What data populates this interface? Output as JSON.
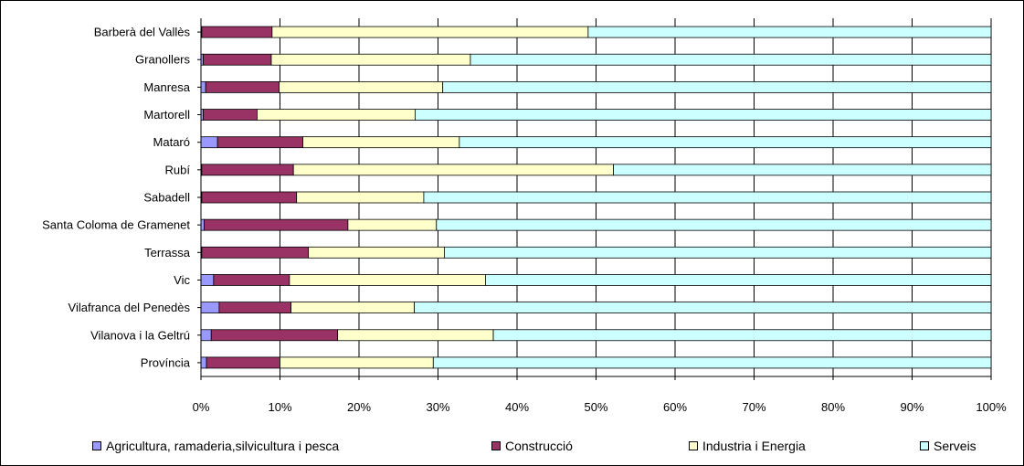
{
  "chart_data": {
    "type": "bar",
    "orientation": "horizontal",
    "stacking": "percent",
    "title": "",
    "xlabel": "",
    "ylabel": "",
    "xlim": [
      0,
      100
    ],
    "x_ticks": [
      "0%",
      "10%",
      "20%",
      "30%",
      "40%",
      "50%",
      "60%",
      "70%",
      "80%",
      "90%",
      "100%"
    ],
    "grid": "vertical",
    "legend_position": "bottom",
    "categories": [
      "Barberà del Vallès",
      "Granollers",
      "Manresa",
      "Martorell",
      "Mataró",
      "Rubí",
      "Sabadell",
      "Santa Coloma de Gramenet",
      "Terrassa",
      "Vic",
      "Vilafranca del Penedès",
      "Vilanova i la Geltrú",
      "Província"
    ],
    "series": [
      {
        "name": "Agricultura, ramaderia,silvicultura i pesca",
        "color": "#9999FF",
        "values": [
          0.1,
          0.3,
          0.6,
          0.3,
          2.1,
          0.1,
          0.1,
          0.4,
          0.1,
          1.6,
          2.3,
          1.3,
          0.7
        ]
      },
      {
        "name": "Construcció",
        "color": "#993366",
        "values": [
          8.9,
          8.6,
          9.3,
          6.8,
          10.8,
          11.6,
          12.0,
          18.2,
          13.5,
          9.6,
          9.1,
          16.0,
          9.3
        ]
      },
      {
        "name": "Industria i Energia",
        "color": "#FFFFCC",
        "values": [
          40.0,
          25.2,
          20.7,
          20.0,
          19.8,
          40.5,
          16.1,
          11.2,
          17.2,
          24.8,
          15.6,
          19.7,
          19.4
        ]
      },
      {
        "name": "Serveis",
        "color": "#CCFFFF",
        "values": [
          51.0,
          65.9,
          69.4,
          72.9,
          67.3,
          47.8,
          71.8,
          70.2,
          69.2,
          64.0,
          73.0,
          63.0,
          70.6
        ]
      }
    ]
  }
}
